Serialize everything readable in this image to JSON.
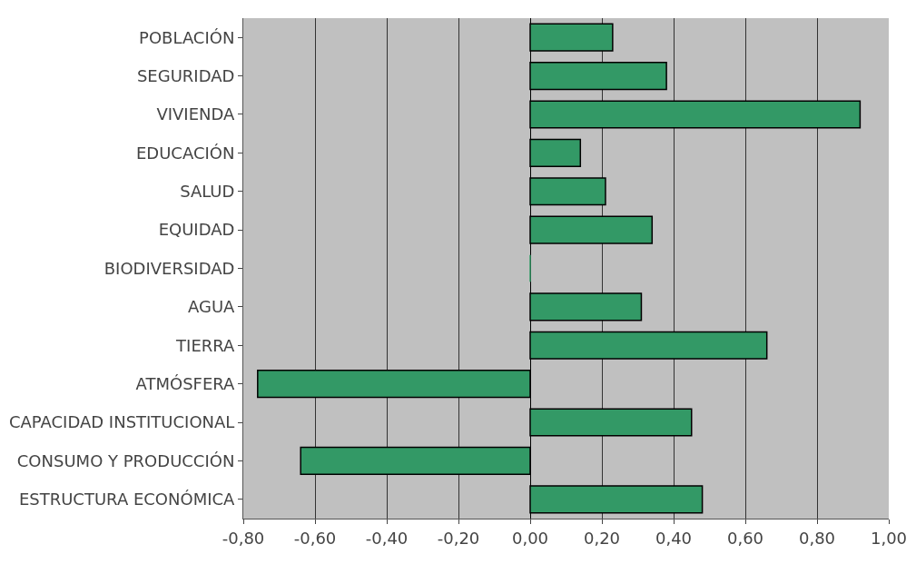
{
  "chart_data": {
    "type": "bar",
    "orientation": "horizontal",
    "categories": [
      "POBLACIÓN",
      "SEGURIDAD",
      "VIVIENDA",
      "EDUCACIÓN",
      "SALUD",
      "EQUIDAD",
      "BIODIVERSIDAD",
      "AGUA",
      "TIERRA",
      "ATMÓSFERA",
      "CAPACIDAD INSTITUCIONAL",
      "CONSUMO Y PRODUCCIÓN",
      "ESTRUCTURA ECONÓMICA"
    ],
    "values": [
      0.23,
      0.38,
      0.92,
      0.14,
      0.21,
      0.34,
      0,
      0.31,
      0.66,
      -0.76,
      0.45,
      -0.64,
      0.48
    ],
    "color": "#339966",
    "xlim": [
      -0.8,
      1.0
    ],
    "xticks": [
      {
        "value": -0.8,
        "label": "-0,80"
      },
      {
        "value": -0.6,
        "label": "-0,60"
      },
      {
        "value": -0.4,
        "label": "-0,40"
      },
      {
        "value": -0.2,
        "label": "-0,20"
      },
      {
        "value": 0,
        "label": "0,00"
      },
      {
        "value": 0.2,
        "label": "0,20"
      },
      {
        "value": 0.4,
        "label": "0,40"
      },
      {
        "value": 0.6,
        "label": "0,60"
      },
      {
        "value": 0.8,
        "label": "0,80"
      },
      {
        "value": 1.0,
        "label": "1,00"
      }
    ],
    "grid": "x"
  }
}
